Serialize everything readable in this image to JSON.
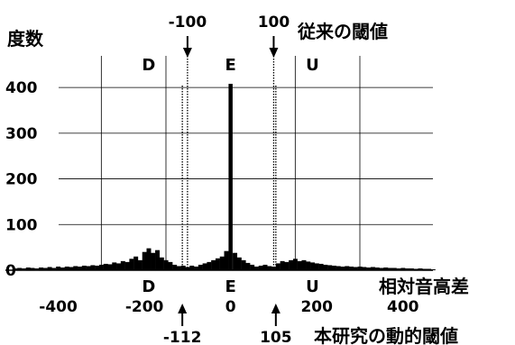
{
  "chart_data": {
    "type": "bar",
    "ylabel": "度数",
    "xlabel": "相対音高差",
    "xlim": [
      -510,
      480
    ],
    "ylim": [
      0,
      420
    ],
    "xticks": [
      {
        "value": -400,
        "label": "-400"
      },
      {
        "value": -200,
        "label": "-200"
      },
      {
        "value": 0,
        "label": "0"
      },
      {
        "value": 200,
        "label": "200"
      },
      {
        "value": 400,
        "label": "400"
      }
    ],
    "yticks": [
      {
        "value": 0,
        "label": "0"
      },
      {
        "value": 100,
        "label": "100"
      },
      {
        "value": 200,
        "label": "200"
      },
      {
        "value": 300,
        "label": "300"
      },
      {
        "value": 400,
        "label": "400"
      }
    ],
    "vgrid": [
      -300,
      -150,
      150,
      300
    ],
    "hgrid": [
      100,
      200,
      300,
      400
    ],
    "grid": true,
    "bin_width": 10,
    "bins": [
      {
        "x": -500,
        "v": 4
      },
      {
        "x": -490,
        "v": 5
      },
      {
        "x": -480,
        "v": 4
      },
      {
        "x": -470,
        "v": 6
      },
      {
        "x": -460,
        "v": 5
      },
      {
        "x": -450,
        "v": 4
      },
      {
        "x": -440,
        "v": 6
      },
      {
        "x": -430,
        "v": 5
      },
      {
        "x": -420,
        "v": 7
      },
      {
        "x": -410,
        "v": 5
      },
      {
        "x": -400,
        "v": 8
      },
      {
        "x": -390,
        "v": 6
      },
      {
        "x": -380,
        "v": 8
      },
      {
        "x": -370,
        "v": 7
      },
      {
        "x": -360,
        "v": 9
      },
      {
        "x": -350,
        "v": 8
      },
      {
        "x": -340,
        "v": 10
      },
      {
        "x": -330,
        "v": 9
      },
      {
        "x": -320,
        "v": 11
      },
      {
        "x": -310,
        "v": 10
      },
      {
        "x": -300,
        "v": 12
      },
      {
        "x": -290,
        "v": 14
      },
      {
        "x": -280,
        "v": 13
      },
      {
        "x": -270,
        "v": 17
      },
      {
        "x": -260,
        "v": 15
      },
      {
        "x": -250,
        "v": 20
      },
      {
        "x": -240,
        "v": 18
      },
      {
        "x": -230,
        "v": 25
      },
      {
        "x": -220,
        "v": 30
      },
      {
        "x": -210,
        "v": 22
      },
      {
        "x": -200,
        "v": 40
      },
      {
        "x": -190,
        "v": 48
      },
      {
        "x": -180,
        "v": 38
      },
      {
        "x": -170,
        "v": 44
      },
      {
        "x": -160,
        "v": 28
      },
      {
        "x": -150,
        "v": 22
      },
      {
        "x": -140,
        "v": 18
      },
      {
        "x": -130,
        "v": 12
      },
      {
        "x": -120,
        "v": 9
      },
      {
        "x": -110,
        "v": 10
      },
      {
        "x": -100,
        "v": 7
      },
      {
        "x": -90,
        "v": 10
      },
      {
        "x": -80,
        "v": 8
      },
      {
        "x": -70,
        "v": 12
      },
      {
        "x": -60,
        "v": 15
      },
      {
        "x": -50,
        "v": 18
      },
      {
        "x": -40,
        "v": 22
      },
      {
        "x": -30,
        "v": 26
      },
      {
        "x": -20,
        "v": 30
      },
      {
        "x": -10,
        "v": 42
      },
      {
        "x": 0,
        "v": 408
      },
      {
        "x": 10,
        "v": 38
      },
      {
        "x": 20,
        "v": 28
      },
      {
        "x": 30,
        "v": 22
      },
      {
        "x": 40,
        "v": 16
      },
      {
        "x": 50,
        "v": 12
      },
      {
        "x": 60,
        "v": 8
      },
      {
        "x": 70,
        "v": 10
      },
      {
        "x": 80,
        "v": 12
      },
      {
        "x": 90,
        "v": 9
      },
      {
        "x": 100,
        "v": 8
      },
      {
        "x": 110,
        "v": 15
      },
      {
        "x": 120,
        "v": 20
      },
      {
        "x": 130,
        "v": 18
      },
      {
        "x": 140,
        "v": 22
      },
      {
        "x": 150,
        "v": 25
      },
      {
        "x": 160,
        "v": 20
      },
      {
        "x": 170,
        "v": 22
      },
      {
        "x": 180,
        "v": 19
      },
      {
        "x": 190,
        "v": 17
      },
      {
        "x": 200,
        "v": 15
      },
      {
        "x": 210,
        "v": 14
      },
      {
        "x": 220,
        "v": 12
      },
      {
        "x": 230,
        "v": 11
      },
      {
        "x": 240,
        "v": 10
      },
      {
        "x": 250,
        "v": 9
      },
      {
        "x": 260,
        "v": 8
      },
      {
        "x": 270,
        "v": 9
      },
      {
        "x": 280,
        "v": 8
      },
      {
        "x": 290,
        "v": 7
      },
      {
        "x": 300,
        "v": 8
      },
      {
        "x": 310,
        "v": 7
      },
      {
        "x": 320,
        "v": 6
      },
      {
        "x": 330,
        "v": 7
      },
      {
        "x": 340,
        "v": 6
      },
      {
        "x": 350,
        "v": 5
      },
      {
        "x": 360,
        "v": 6
      },
      {
        "x": 370,
        "v": 5
      },
      {
        "x": 380,
        "v": 5
      },
      {
        "x": 390,
        "v": 4
      },
      {
        "x": 400,
        "v": 5
      },
      {
        "x": 410,
        "v": 4
      },
      {
        "x": 420,
        "v": 4
      },
      {
        "x": 430,
        "v": 3
      },
      {
        "x": 440,
        "v": 4
      },
      {
        "x": 450,
        "v": 3
      },
      {
        "x": 460,
        "v": 3
      },
      {
        "x": 470,
        "v": 2
      }
    ],
    "regions_top": [
      {
        "x": -190,
        "label": "D"
      },
      {
        "x": 0,
        "label": "E"
      },
      {
        "x": 190,
        "label": "U"
      }
    ],
    "regions_bottom": [
      {
        "x": -190,
        "label": "D"
      },
      {
        "x": 0,
        "label": "E"
      },
      {
        "x": 190,
        "label": "U"
      }
    ],
    "fixed_thresholds": {
      "legend": "従来の閾値",
      "lines": [
        {
          "value": -100,
          "label": "-100"
        },
        {
          "value": 100,
          "label": "100"
        }
      ]
    },
    "dynamic_thresholds": {
      "legend": "本研究の動的閾値",
      "lines": [
        {
          "value": -112,
          "label": "-112"
        },
        {
          "value": 105,
          "label": "105"
        }
      ]
    }
  }
}
